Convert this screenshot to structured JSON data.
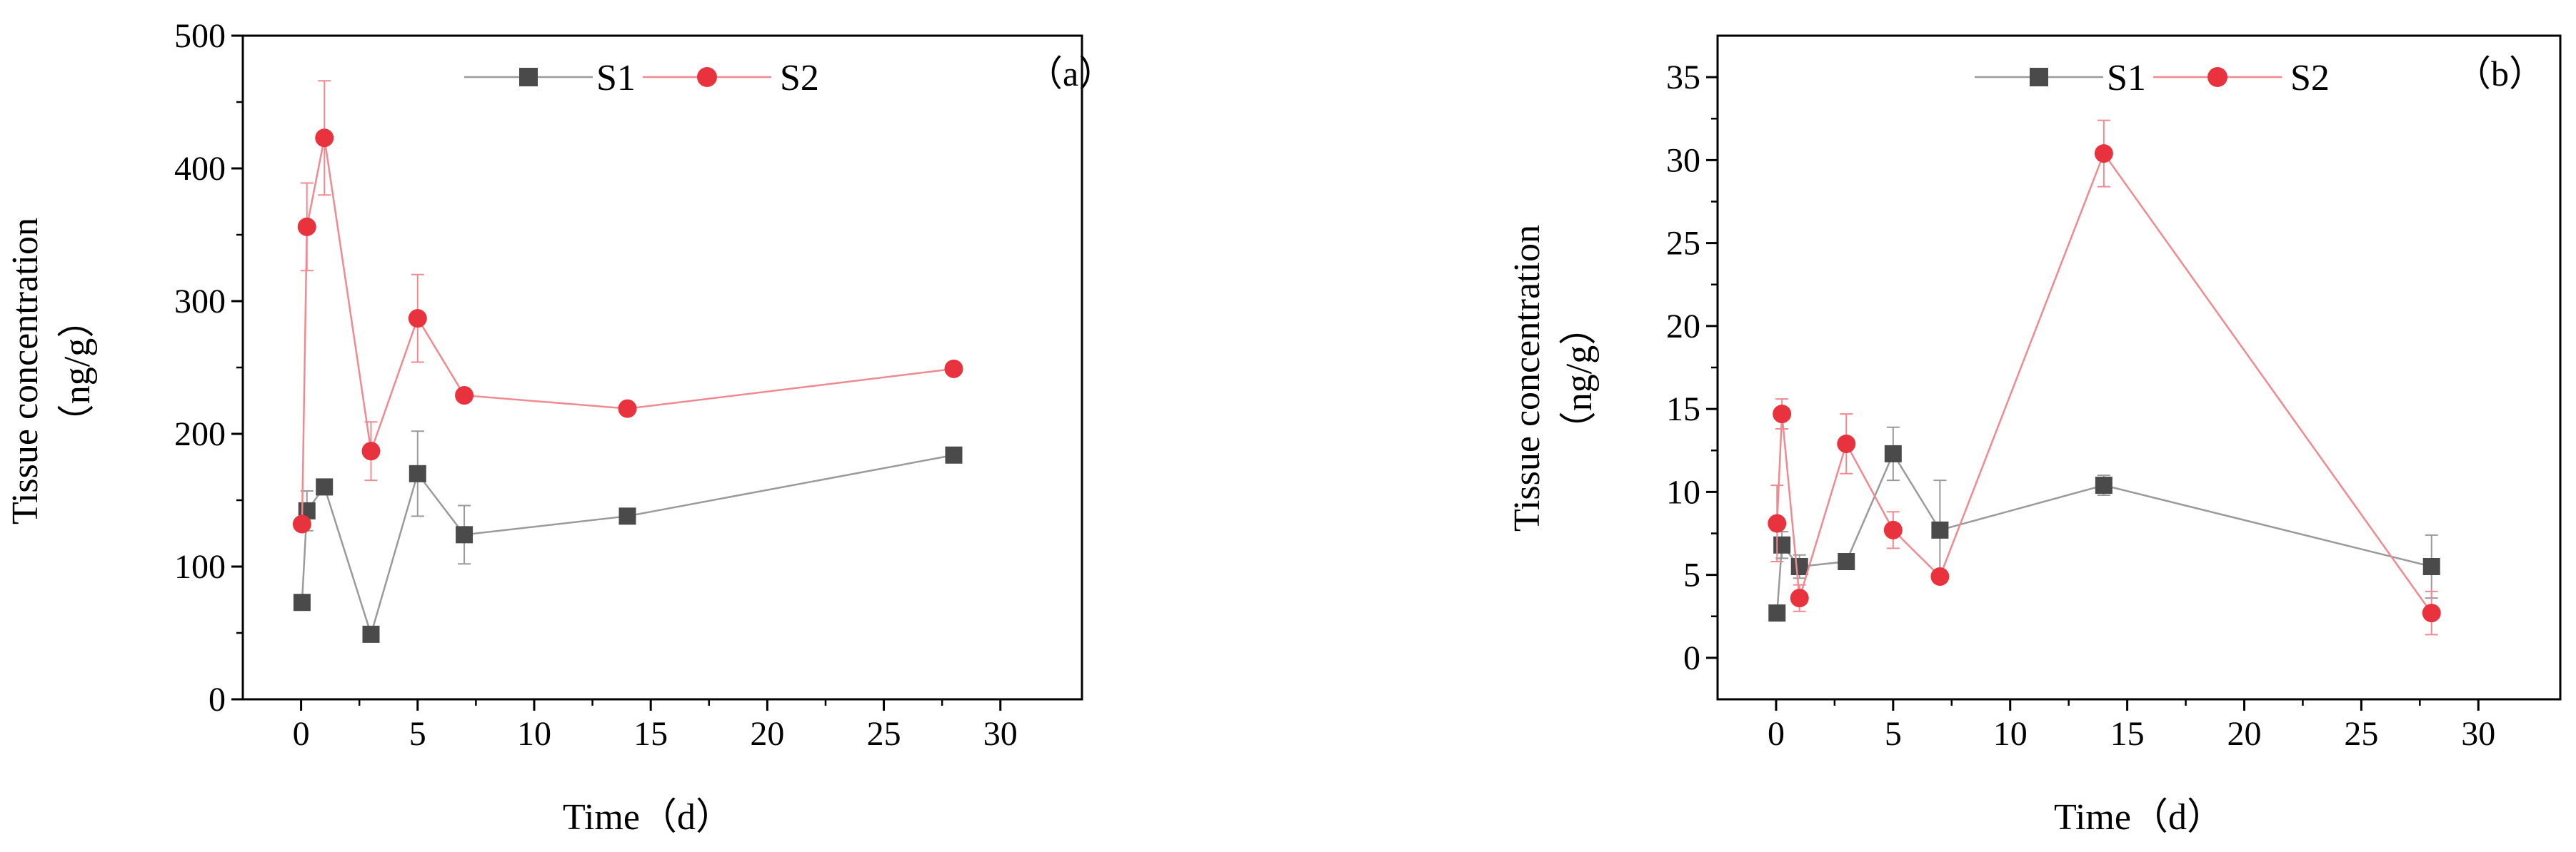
{
  "chart_data": [
    {
      "type": "line",
      "panel_label": "（a）",
      "xlabel": "Time（d）",
      "ylabel_line1": "Tissue concentration",
      "ylabel_line2": "（ng/g）",
      "xlim": [
        -2.5,
        33.5
      ],
      "ylim": [
        0,
        500
      ],
      "xticks": [
        0,
        5,
        10,
        15,
        20,
        25,
        30
      ],
      "yticks": [
        0,
        100,
        200,
        300,
        400,
        500
      ],
      "grid": false,
      "legend_position": "top-center",
      "series": [
        {
          "name": "S1",
          "marker": "square",
          "color": "#4a4a4a",
          "line_color": "#9a9a9a",
          "x": [
            0.04,
            0.25,
            1,
            3,
            5,
            7,
            14,
            28
          ],
          "y": [
            73,
            142,
            160,
            49,
            170,
            124,
            138,
            184
          ],
          "err": [
            0,
            15,
            0,
            5,
            32,
            22,
            0,
            0
          ]
        },
        {
          "name": "S2",
          "marker": "circle",
          "color": "#e8333e",
          "line_color": "#f08a90",
          "x": [
            0.04,
            0.25,
            1,
            3,
            5,
            7,
            14,
            28
          ],
          "y": [
            132,
            356,
            423,
            187,
            287,
            229,
            219,
            249
          ],
          "err": [
            0,
            33,
            43,
            22,
            33,
            0,
            0,
            0
          ]
        }
      ]
    },
    {
      "type": "line",
      "panel_label": "（b）",
      "xlabel": "Time（d）",
      "ylabel_line1": "Tissue concentration",
      "ylabel_line2": "（ng/g）",
      "xlim": [
        -2.5,
        33.5
      ],
      "ylim": [
        -2.5,
        37.5
      ],
      "xticks": [
        0,
        5,
        10,
        15,
        20,
        25,
        30
      ],
      "yticks": [
        0,
        5,
        10,
        15,
        20,
        25,
        30,
        35
      ],
      "grid": false,
      "legend_position": "top-center",
      "series": [
        {
          "name": "S1",
          "marker": "square",
          "color": "#4a4a4a",
          "line_color": "#9a9a9a",
          "x": [
            0.04,
            0.25,
            1,
            3,
            5,
            7,
            14,
            28
          ],
          "y": [
            2.7,
            6.8,
            5.5,
            5.8,
            12.3,
            7.7,
            10.4,
            5.5
          ],
          "err": [
            0,
            0.8,
            0.7,
            0,
            1.6,
            3.0,
            0.6,
            1.9
          ]
        },
        {
          "name": "S2",
          "marker": "circle",
          "color": "#e8333e",
          "line_color": "#f08a90",
          "x": [
            0.04,
            0.25,
            1,
            3,
            5,
            7,
            14,
            28
          ],
          "y": [
            8.1,
            14.7,
            3.6,
            12.9,
            7.7,
            4.9,
            30.4,
            2.7
          ],
          "err": [
            2.3,
            0.9,
            0.8,
            1.8,
            1.1,
            0,
            2.0,
            1.3
          ]
        }
      ]
    }
  ]
}
